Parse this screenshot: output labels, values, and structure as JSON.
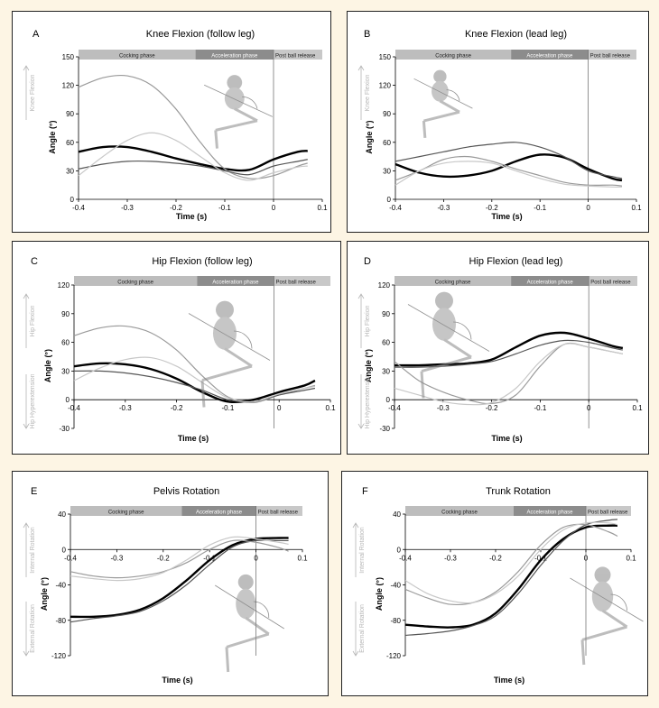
{
  "colors": {
    "background": "#fdf5e4",
    "cocking": "#bdbdbd",
    "acceleration": "#8c8c8c",
    "post": "#c8c8c8",
    "line_dark": "#000000",
    "line_mid": "#555555",
    "line_light": "#9a9a9a",
    "line_lighter": "#c8c8c8"
  },
  "chart_data": [
    {
      "id": "A",
      "type": "line",
      "title": "Knee Flexion (follow leg)",
      "xlabel": "Time (s)",
      "ylabel": "Angle (°)",
      "xlim": [
        -0.4,
        0.1
      ],
      "ylim": [
        0,
        150
      ],
      "xticks": [
        "-0.4",
        "-0.3",
        "-0.2",
        "-0.1",
        "0",
        "0.1"
      ],
      "yticks": [
        "0",
        "30",
        "60",
        "90",
        "120",
        "150"
      ],
      "phases": [
        "Cocking phase",
        "Acceleration phase",
        "Post ball release"
      ],
      "phase_bounds": [
        -0.4,
        -0.16,
        0,
        0.1
      ],
      "direction_labels": {
        "upper": "Knee Flexion",
        "lower": ""
      },
      "series": [
        {
          "x": [
            -0.4,
            -0.35,
            -0.3,
            -0.25,
            -0.2,
            -0.15,
            -0.1,
            -0.05,
            0,
            0.05,
            0.07
          ],
          "y": [
            50,
            55,
            55,
            50,
            43,
            37,
            32,
            31,
            42,
            50,
            51
          ],
          "width": 2.4,
          "color": "line_dark"
        },
        {
          "x": [
            -0.4,
            -0.35,
            -0.3,
            -0.25,
            -0.2,
            -0.15,
            -0.1,
            -0.05,
            0,
            0.05,
            0.07
          ],
          "y": [
            118,
            128,
            130,
            120,
            95,
            60,
            32,
            22,
            25,
            35,
            38
          ],
          "width": 1.2,
          "color": "line_light"
        },
        {
          "x": [
            -0.4,
            -0.35,
            -0.3,
            -0.25,
            -0.2,
            -0.15,
            -0.1,
            -0.05,
            0,
            0.05,
            0.07
          ],
          "y": [
            32,
            37,
            40,
            40,
            38,
            35,
            30,
            26,
            35,
            40,
            42
          ],
          "width": 1.2,
          "color": "line_mid"
        },
        {
          "x": [
            -0.4,
            -0.35,
            -0.3,
            -0.25,
            -0.2,
            -0.15,
            -0.1,
            -0.05,
            0,
            0.05,
            0.07
          ],
          "y": [
            25,
            45,
            62,
            70,
            62,
            45,
            28,
            20,
            28,
            34,
            35
          ],
          "width": 1.2,
          "color": "line_lighter"
        }
      ]
    },
    {
      "id": "B",
      "type": "line",
      "title": "Knee Flexion (lead leg)",
      "xlabel": "Time (s)",
      "ylabel": "Angle (°)",
      "xlim": [
        -0.4,
        0.1
      ],
      "ylim": [
        0,
        150
      ],
      "xticks": [
        "-0.4",
        "-0.3",
        "-0.2",
        "-0.1",
        "0",
        "0.1"
      ],
      "yticks": [
        "0",
        "30",
        "60",
        "90",
        "120",
        "150"
      ],
      "phases": [
        "Cocking phase",
        "Acceleration phase",
        "Post ball release"
      ],
      "phase_bounds": [
        -0.4,
        -0.16,
        0,
        0.1
      ],
      "direction_labels": {
        "upper": "Knee Flexion",
        "lower": ""
      },
      "series": [
        {
          "x": [
            -0.4,
            -0.35,
            -0.3,
            -0.25,
            -0.2,
            -0.15,
            -0.1,
            -0.05,
            0,
            0.05,
            0.07
          ],
          "y": [
            37,
            28,
            24,
            25,
            30,
            40,
            47,
            44,
            32,
            22,
            20
          ],
          "width": 2.4,
          "color": "line_dark"
        },
        {
          "x": [
            -0.4,
            -0.35,
            -0.3,
            -0.25,
            -0.2,
            -0.15,
            -0.1,
            -0.05,
            0,
            0.05,
            0.07
          ],
          "y": [
            40,
            45,
            50,
            55,
            58,
            60,
            55,
            45,
            30,
            24,
            22
          ],
          "width": 1.2,
          "color": "line_mid"
        },
        {
          "x": [
            -0.4,
            -0.35,
            -0.3,
            -0.25,
            -0.2,
            -0.15,
            -0.1,
            -0.05,
            0,
            0.05,
            0.07
          ],
          "y": [
            20,
            30,
            42,
            45,
            40,
            32,
            25,
            18,
            15,
            15,
            14
          ],
          "width": 1.2,
          "color": "line_light"
        },
        {
          "x": [
            -0.4,
            -0.35,
            -0.3,
            -0.25,
            -0.2,
            -0.15,
            -0.1,
            -0.05,
            0,
            0.05,
            0.07
          ],
          "y": [
            15,
            30,
            38,
            40,
            38,
            30,
            22,
            16,
            14,
            13,
            13
          ],
          "width": 1.2,
          "color": "line_lighter"
        }
      ]
    },
    {
      "id": "C",
      "type": "line",
      "title": "Hip Flexion (follow leg)",
      "xlabel": "Time (s)",
      "ylabel": "Angle (°)",
      "xlim": [
        -0.4,
        0.1
      ],
      "ylim": [
        -30,
        120
      ],
      "xticks": [
        "-0.4",
        "-0.3",
        "-0.2",
        "-0.1",
        "0",
        "0.1"
      ],
      "yticks": [
        "-30",
        "0",
        "30",
        "60",
        "90",
        "120"
      ],
      "phases": [
        "Cocking phase",
        "Acceleration phase",
        "Post ball release"
      ],
      "phase_bounds": [
        -0.4,
        -0.16,
        -0.01,
        0.1
      ],
      "direction_labels": {
        "upper": "Hip Flexion",
        "lower": "Hip Hyperextension"
      },
      "series": [
        {
          "x": [
            -0.4,
            -0.35,
            -0.3,
            -0.25,
            -0.2,
            -0.15,
            -0.1,
            -0.05,
            0,
            0.05,
            0.07
          ],
          "y": [
            35,
            38,
            37,
            32,
            22,
            8,
            -2,
            0,
            8,
            15,
            20
          ],
          "width": 2.4,
          "color": "line_dark"
        },
        {
          "x": [
            -0.4,
            -0.35,
            -0.3,
            -0.25,
            -0.2,
            -0.15,
            -0.1,
            -0.05,
            0,
            0.05,
            0.07
          ],
          "y": [
            67,
            75,
            77,
            70,
            52,
            25,
            3,
            -3,
            5,
            12,
            15
          ],
          "width": 1.2,
          "color": "line_light"
        },
        {
          "x": [
            -0.4,
            -0.35,
            -0.3,
            -0.25,
            -0.2,
            -0.15,
            -0.1,
            -0.05,
            0,
            0.05,
            0.07
          ],
          "y": [
            30,
            30,
            28,
            24,
            18,
            10,
            0,
            -2,
            5,
            10,
            12
          ],
          "width": 1.2,
          "color": "line_mid"
        },
        {
          "x": [
            -0.4,
            -0.35,
            -0.3,
            -0.25,
            -0.2,
            -0.15,
            -0.1,
            -0.05,
            0,
            0.05,
            0.07
          ],
          "y": [
            20,
            33,
            42,
            44,
            35,
            18,
            2,
            -2,
            6,
            12,
            14
          ],
          "width": 1.2,
          "color": "line_lighter"
        }
      ]
    },
    {
      "id": "D",
      "type": "line",
      "title": "Hip Flexion (lead leg)",
      "xlabel": "Time (s)",
      "ylabel": "Angle (°)",
      "xlim": [
        -0.4,
        0.1
      ],
      "ylim": [
        -30,
        120
      ],
      "xticks": [
        "-0.4",
        "-0.3",
        "-0.2",
        "-0.1",
        "0",
        "0.1"
      ],
      "yticks": [
        "-30",
        "0",
        "30",
        "60",
        "90",
        "120"
      ],
      "phases": [
        "Cocking phase",
        "Acceleration phase",
        "Post ball release"
      ],
      "phase_bounds": [
        -0.4,
        -0.16,
        0,
        0.1
      ],
      "direction_labels": {
        "upper": "Hip Flexion",
        "lower": "Hip Hyperextension"
      },
      "series": [
        {
          "x": [
            -0.4,
            -0.35,
            -0.3,
            -0.25,
            -0.2,
            -0.15,
            -0.1,
            -0.05,
            0,
            0.05,
            0.07
          ],
          "y": [
            36,
            36,
            37,
            38,
            42,
            55,
            67,
            70,
            64,
            56,
            54
          ],
          "width": 2.4,
          "color": "line_dark"
        },
        {
          "x": [
            -0.4,
            -0.35,
            -0.3,
            -0.25,
            -0.2,
            -0.15,
            -0.1,
            -0.05,
            0,
            0.05,
            0.07
          ],
          "y": [
            34,
            34,
            35,
            37,
            40,
            48,
            57,
            62,
            60,
            54,
            52
          ],
          "width": 1.2,
          "color": "line_mid"
        },
        {
          "x": [
            -0.4,
            -0.35,
            -0.3,
            -0.25,
            -0.2,
            -0.15,
            -0.1,
            -0.05,
            0,
            0.05,
            0.07
          ],
          "y": [
            40,
            20,
            8,
            0,
            -4,
            5,
            35,
            58,
            55,
            50,
            48
          ],
          "width": 1.2,
          "color": "line_light"
        },
        {
          "x": [
            -0.4,
            -0.35,
            -0.3,
            -0.25,
            -0.2,
            -0.15,
            -0.1,
            -0.05,
            0,
            0.05,
            0.07
          ],
          "y": [
            12,
            5,
            -2,
            -5,
            -3,
            12,
            40,
            58,
            55,
            50,
            48
          ],
          "width": 1.2,
          "color": "line_lighter"
        }
      ]
    },
    {
      "id": "E",
      "type": "line",
      "title": "Pelvis Rotation",
      "xlabel": "Time (s)",
      "ylabel": "Angle (°)",
      "xlim": [
        -0.4,
        0.1
      ],
      "ylim": [
        -120,
        40
      ],
      "xticks": [
        "-0.4",
        "-0.3",
        "-0.2",
        "-0.1",
        "0",
        "0.1"
      ],
      "yticks": [
        "-120",
        "-80",
        "-40",
        "0",
        "40"
      ],
      "phases": [
        "Cocking phase",
        "Acceleration phase",
        "Post ball release"
      ],
      "phase_bounds": [
        -0.4,
        -0.16,
        0,
        0.1
      ],
      "direction_labels": {
        "upper": "Internal Rotation",
        "lower": "External Rotation"
      },
      "series": [
        {
          "x": [
            -0.4,
            -0.35,
            -0.3,
            -0.25,
            -0.2,
            -0.15,
            -0.1,
            -0.05,
            0,
            0.05,
            0.07
          ],
          "y": [
            -76,
            -76,
            -74,
            -68,
            -55,
            -35,
            -12,
            5,
            12,
            13,
            13
          ],
          "width": 2.4,
          "color": "line_dark"
        },
        {
          "x": [
            -0.4,
            -0.35,
            -0.3,
            -0.25,
            -0.2,
            -0.15,
            -0.1,
            -0.05,
            0,
            0.05,
            0.07
          ],
          "y": [
            -82,
            -78,
            -75,
            -70,
            -58,
            -40,
            -17,
            3,
            10,
            10,
            10
          ],
          "width": 1.2,
          "color": "line_mid"
        },
        {
          "x": [
            -0.4,
            -0.35,
            -0.3,
            -0.25,
            -0.2,
            -0.15,
            -0.1,
            -0.05,
            0,
            0.05,
            0.07
          ],
          "y": [
            -25,
            -30,
            -32,
            -30,
            -25,
            -15,
            0,
            10,
            8,
            2,
            -2
          ],
          "width": 1.2,
          "color": "line_light"
        },
        {
          "x": [
            -0.4,
            -0.35,
            -0.3,
            -0.25,
            -0.2,
            -0.15,
            -0.1,
            -0.05,
            0,
            0.05,
            0.07
          ],
          "y": [
            -30,
            -33,
            -35,
            -33,
            -26,
            -12,
            5,
            14,
            12,
            8,
            6
          ],
          "width": 1.2,
          "color": "line_lighter"
        }
      ]
    },
    {
      "id": "F",
      "type": "line",
      "title": "Trunk Rotation",
      "xlabel": "Time (s)",
      "ylabel": "Angle (°)",
      "xlim": [
        -0.4,
        0.1
      ],
      "ylim": [
        -120,
        40
      ],
      "xticks": [
        "-0.4",
        "-0.3",
        "-0.2",
        "-0.1",
        "0",
        "0.1"
      ],
      "yticks": [
        "-120",
        "-80",
        "-40",
        "0",
        "40"
      ],
      "phases": [
        "Cocking phase",
        "Acceleration phase",
        "Post ball release"
      ],
      "phase_bounds": [
        -0.4,
        -0.16,
        0,
        0.1
      ],
      "direction_labels": {
        "upper": "Internal Rotation",
        "lower": "External Rotation"
      },
      "series": [
        {
          "x": [
            -0.4,
            -0.35,
            -0.3,
            -0.25,
            -0.2,
            -0.15,
            -0.1,
            -0.05,
            0,
            0.05,
            0.07
          ],
          "y": [
            -85,
            -87,
            -88,
            -85,
            -72,
            -45,
            -12,
            12,
            25,
            27,
            27
          ],
          "width": 2.4,
          "color": "line_dark"
        },
        {
          "x": [
            -0.4,
            -0.35,
            -0.3,
            -0.25,
            -0.2,
            -0.15,
            -0.1,
            -0.05,
            0,
            0.05,
            0.07
          ],
          "y": [
            -97,
            -95,
            -92,
            -86,
            -75,
            -50,
            -18,
            10,
            28,
            33,
            34
          ],
          "width": 1.2,
          "color": "line_mid"
        },
        {
          "x": [
            -0.4,
            -0.35,
            -0.3,
            -0.25,
            -0.2,
            -0.15,
            -0.1,
            -0.05,
            0,
            0.05,
            0.07
          ],
          "y": [
            -45,
            -55,
            -62,
            -60,
            -48,
            -25,
            5,
            25,
            28,
            20,
            15
          ],
          "width": 1.2,
          "color": "line_light"
        },
        {
          "x": [
            -0.4,
            -0.35,
            -0.3,
            -0.25,
            -0.2,
            -0.15,
            -0.1,
            -0.05,
            0,
            0.05,
            0.07
          ],
          "y": [
            -35,
            -50,
            -58,
            -60,
            -50,
            -30,
            0,
            22,
            30,
            30,
            28
          ],
          "width": 1.2,
          "color": "line_lighter"
        }
      ]
    }
  ]
}
